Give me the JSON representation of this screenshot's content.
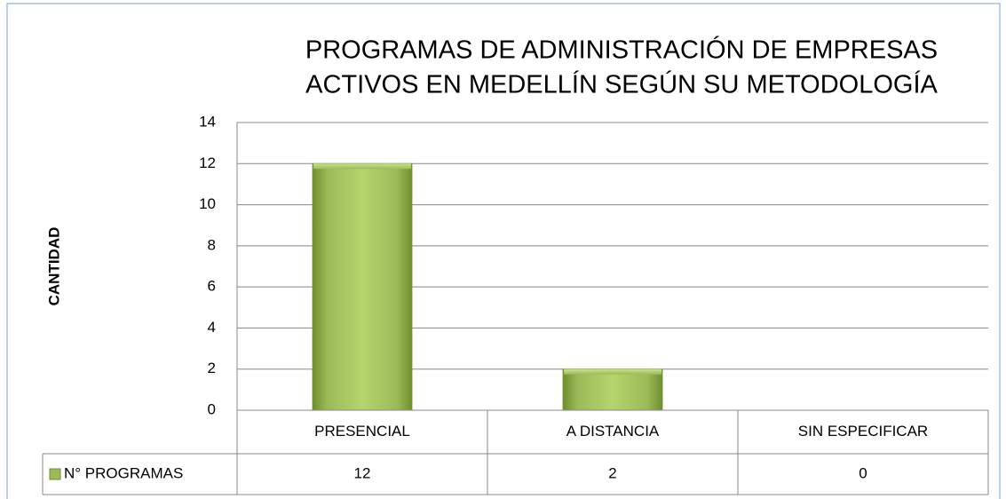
{
  "chart_data": {
    "type": "bar",
    "title": [
      "PROGRAMAS DE ADMINISTRACIÓN DE EMPRESAS",
      "ACTIVOS EN MEDELLÍN SEGÚN SU METODOLOGÍA"
    ],
    "y_label": "CANTIDAD",
    "categories": [
      "PRESENCIAL",
      "A DISTANCIA",
      "SIN ESPECIFICAR"
    ],
    "series": [
      {
        "name": "N° PROGRAMAS",
        "color": "#9bbb59",
        "values": [
          12,
          2,
          0
        ]
      }
    ],
    "ylim": [
      0,
      14
    ],
    "yticks": [
      0,
      2,
      4,
      6,
      8,
      10,
      12,
      14
    ],
    "grid": true,
    "data_table": true
  }
}
